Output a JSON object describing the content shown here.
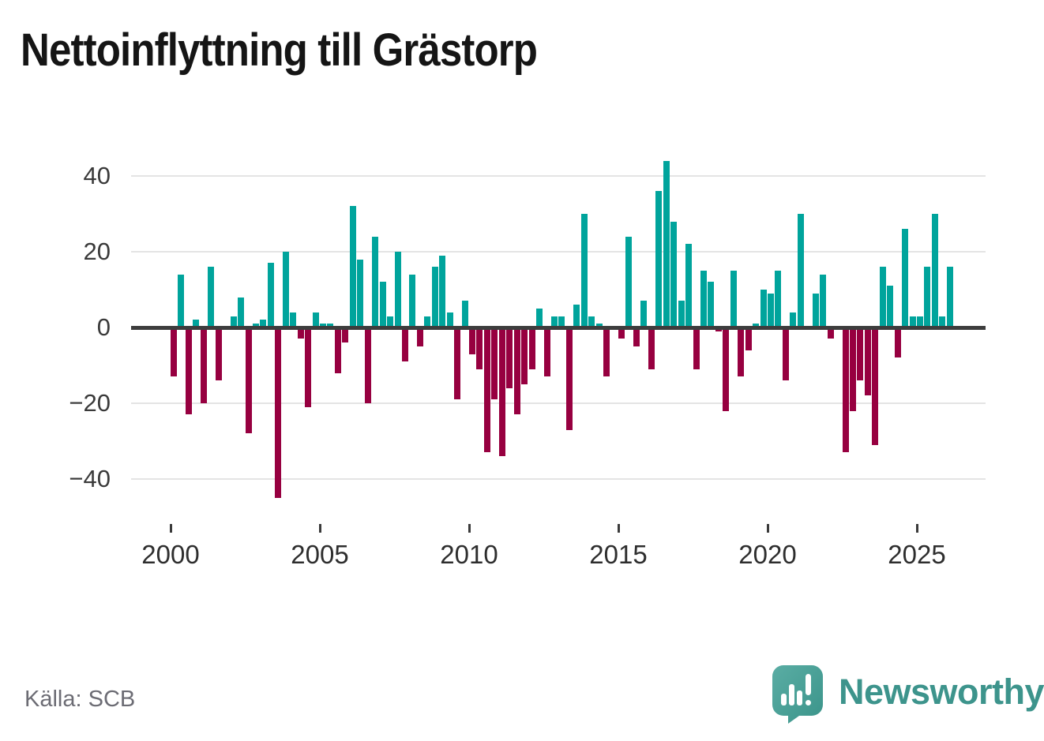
{
  "title": "Nettoinflyttning till Grästorp",
  "source": "Källa: SCB",
  "logo": {
    "text": "Newsworthy"
  },
  "colors": {
    "positive": "#00a49c",
    "negative": "#970040",
    "grid": "#e4e4e4",
    "zero_line": "#3d3d3d",
    "axis_text": "#3a3a3a",
    "title_text": "#151515",
    "source_text": "#6c6c74",
    "logo_teal": "#3d948c"
  },
  "chart_data": {
    "type": "bar",
    "title": "Nettoinflyttning till Grästorp",
    "frequency": "quarterly",
    "start_period": "2000-Q1",
    "end_period": "2026-Q1",
    "values": [
      -13,
      14,
      -23,
      2,
      -20,
      16,
      -14,
      0,
      3,
      8,
      -28,
      1,
      2,
      17,
      -45,
      20,
      4,
      -3,
      -21,
      4,
      1,
      1,
      -12,
      -4,
      32,
      18,
      -20,
      24,
      12,
      3,
      20,
      -9,
      14,
      -5,
      3,
      16,
      19,
      4,
      -19,
      7,
      -7,
      -11,
      -33,
      -19,
      -34,
      -16,
      -23,
      -15,
      -11,
      5,
      -13,
      3,
      3,
      -27,
      6,
      30,
      3,
      1,
      -13,
      0,
      -3,
      24,
      -5,
      7,
      -11,
      36,
      44,
      28,
      7,
      22,
      -11,
      15,
      12,
      -1,
      -22,
      15,
      -13,
      -6,
      1,
      10,
      9,
      15,
      -14,
      4,
      30,
      0,
      9,
      14,
      -3,
      0,
      -33,
      -22,
      -14,
      -18,
      -31,
      16,
      11,
      -8,
      26,
      3,
      3,
      16,
      30,
      3,
      16
    ],
    "y_ticks": [
      40,
      20,
      0,
      -20,
      -40
    ],
    "y_tick_labels": [
      "40",
      "20",
      "0",
      "−20",
      "−40"
    ],
    "x_tick_years": [
      2000,
      2005,
      2010,
      2015,
      2020,
      2025
    ],
    "ylim": [
      -47,
      47
    ],
    "grid": true,
    "legend": false,
    "positive_color": "#00a49c",
    "negative_color": "#970040"
  }
}
